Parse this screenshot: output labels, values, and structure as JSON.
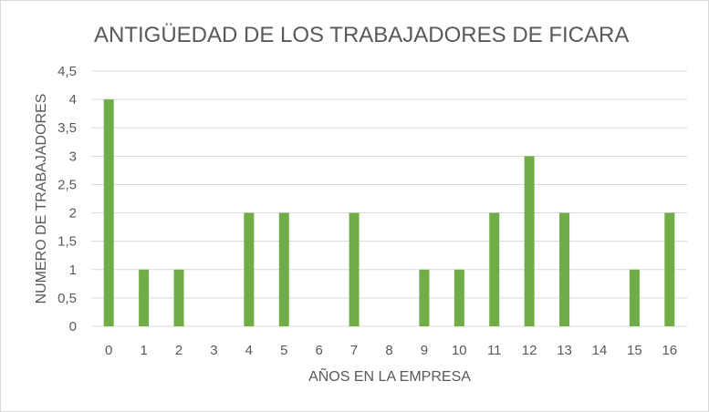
{
  "chart_data": {
    "type": "bar",
    "title": "ANTIGÜEDAD DE LOS TRABAJADORES DE FICARA",
    "xlabel": "AÑOS EN LA EMPRESA",
    "ylabel": "NUMERO DE TRABAJADORES",
    "categories": [
      "0",
      "1",
      "2",
      "3",
      "4",
      "5",
      "6",
      "7",
      "8",
      "9",
      "10",
      "11",
      "12",
      "13",
      "14",
      "15",
      "16"
    ],
    "values": [
      4,
      1,
      1,
      0,
      2,
      2,
      0,
      2,
      0,
      1,
      1,
      2,
      3,
      2,
      0,
      1,
      2
    ],
    "y_ticks": [
      "0",
      "0,5",
      "1",
      "1,5",
      "2",
      "2,5",
      "3",
      "3,5",
      "4",
      "4,5"
    ],
    "ylim": [
      0,
      4.5
    ],
    "grid": true,
    "legend": "none",
    "colors": {
      "bar": "#70ad47",
      "grid": "#d9d9d9",
      "text": "#595959"
    }
  }
}
